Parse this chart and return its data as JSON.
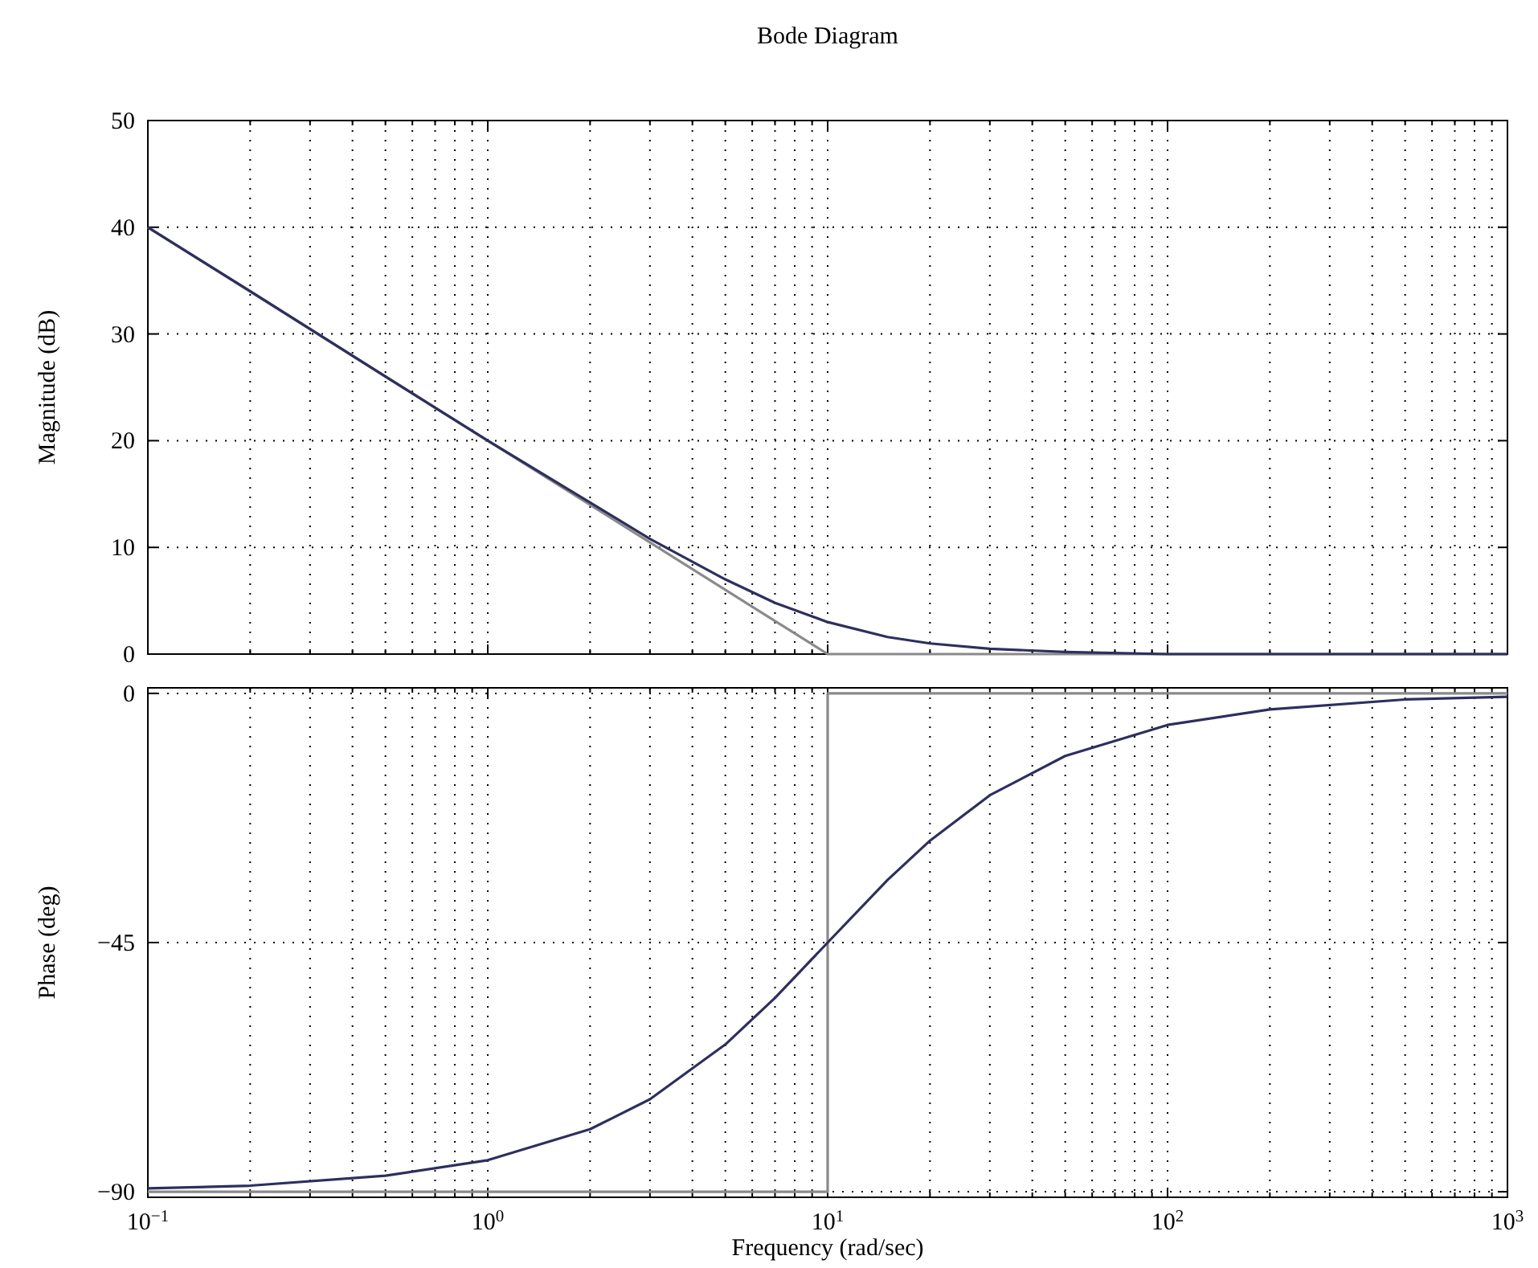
{
  "chart_data": [
    {
      "type": "line",
      "title": "Bode Diagram",
      "ylabel": "Magnitude (dB)",
      "log": "x",
      "grid": true,
      "tick_labels": "y",
      "line_style": "solid",
      "marker": "none",
      "xlim": [
        0.1,
        1000
      ],
      "xticks": [
        {
          "value": 0.1,
          "label": null
        },
        {
          "value": 0.2,
          "label": null
        },
        {
          "value": 0.3,
          "label": null
        },
        {
          "value": 0.4,
          "label": null
        },
        {
          "value": 0.5,
          "label": null
        },
        {
          "value": 0.6,
          "label": null
        },
        {
          "value": 0.7,
          "label": null
        },
        {
          "value": 0.8,
          "label": null
        },
        {
          "value": 0.9,
          "label": null
        },
        {
          "value": 1,
          "label": null
        },
        {
          "value": 2,
          "label": null
        },
        {
          "value": 3,
          "label": null
        },
        {
          "value": 4,
          "label": null
        },
        {
          "value": 5,
          "label": null
        },
        {
          "value": 6,
          "label": null
        },
        {
          "value": 7,
          "label": null
        },
        {
          "value": 8,
          "label": null
        },
        {
          "value": 9,
          "label": null
        },
        {
          "value": 10,
          "label": null
        },
        {
          "value": 20,
          "label": null
        },
        {
          "value": 30,
          "label": null
        },
        {
          "value": 40,
          "label": null
        },
        {
          "value": 50,
          "label": null
        },
        {
          "value": 60,
          "label": null
        },
        {
          "value": 70,
          "label": null
        },
        {
          "value": 80,
          "label": null
        },
        {
          "value": 90,
          "label": null
        },
        {
          "value": 100,
          "label": null
        },
        {
          "value": 200,
          "label": null
        },
        {
          "value": 300,
          "label": null
        },
        {
          "value": 400,
          "label": null
        },
        {
          "value": 500,
          "label": null
        },
        {
          "value": 600,
          "label": null
        },
        {
          "value": 700,
          "label": null
        },
        {
          "value": 800,
          "label": null
        },
        {
          "value": 900,
          "label": null
        },
        {
          "value": 1000,
          "label": null
        }
      ],
      "ylim": [
        0,
        50
      ],
      "yticks": [
        0,
        10,
        20,
        30,
        40,
        50
      ],
      "series": [
        {
          "color": "#8a8a8a",
          "x": [
            0.1,
            10,
            1000
          ],
          "values": [
            40,
            0,
            0
          ]
        },
        {
          "color": "#2e2f5e",
          "x": [
            0.1,
            0.2,
            0.5,
            1,
            2,
            3,
            5,
            7,
            10,
            15,
            20,
            30,
            50,
            100,
            200,
            500,
            1000
          ],
          "values": [
            40.0,
            34.0,
            26.0,
            20.0,
            14.2,
            10.8,
            7.0,
            4.8,
            3.0,
            1.6,
            1.0,
            0.5,
            0.2,
            0,
            0,
            0,
            0
          ]
        }
      ]
    },
    {
      "type": "line",
      "xlabel": "Frequency (rad/sec)",
      "ylabel": "Phase (deg)",
      "log": "x",
      "grid": true,
      "line_style": "solid",
      "marker": "none",
      "xlim": [
        0.1,
        1000
      ],
      "xticks": [
        {
          "value": 0.1,
          "label": "10$^{−1}$"
        },
        {
          "value": 0.2,
          "label": null
        },
        {
          "value": 0.3,
          "label": null
        },
        {
          "value": 0.4,
          "label": null
        },
        {
          "value": 0.5,
          "label": null
        },
        {
          "value": 0.6,
          "label": null
        },
        {
          "value": 0.7,
          "label": null
        },
        {
          "value": 0.8,
          "label": null
        },
        {
          "value": 0.9,
          "label": null
        },
        {
          "value": 1,
          "label": "10$^{0}$"
        },
        {
          "value": 2,
          "label": null
        },
        {
          "value": 3,
          "label": null
        },
        {
          "value": 4,
          "label": null
        },
        {
          "value": 5,
          "label": null
        },
        {
          "value": 6,
          "label": null
        },
        {
          "value": 7,
          "label": null
        },
        {
          "value": 8,
          "label": null
        },
        {
          "value": 9,
          "label": null
        },
        {
          "value": 10,
          "label": "10$^{1}$"
        },
        {
          "value": 20,
          "label": null
        },
        {
          "value": 30,
          "label": null
        },
        {
          "value": 40,
          "label": null
        },
        {
          "value": 50,
          "label": null
        },
        {
          "value": 60,
          "label": null
        },
        {
          "value": 70,
          "label": null
        },
        {
          "value": 80,
          "label": null
        },
        {
          "value": 90,
          "label": null
        },
        {
          "value": 100,
          "label": "10$^{2}$"
        },
        {
          "value": 200,
          "label": null
        },
        {
          "value": 300,
          "label": null
        },
        {
          "value": 400,
          "label": null
        },
        {
          "value": 500,
          "label": null
        },
        {
          "value": 600,
          "label": null
        },
        {
          "value": 700,
          "label": null
        },
        {
          "value": 800,
          "label": null
        },
        {
          "value": 900,
          "label": null
        },
        {
          "value": 1000,
          "label": "10$^{3}$"
        }
      ],
      "ylim": [
        -91,
        1
      ],
      "yticks": [
        {
          "value": -90,
          "label": "−90"
        },
        {
          "value": -45,
          "label": "−45"
        },
        0
      ],
      "series": [
        {
          "color": "#8a8a8a",
          "x": [
            0.1,
            10,
            10,
            1000
          ],
          "values": [
            -90,
            -90,
            0,
            0
          ]
        },
        {
          "color": "#2e2f5e",
          "x": [
            0.1,
            0.2,
            0.5,
            1,
            2,
            3,
            5,
            7,
            10,
            15,
            20,
            30,
            50,
            100,
            200,
            500,
            1000
          ],
          "values": [
            -89.4,
            -88.9,
            -87.1,
            -84.3,
            -78.7,
            -73.3,
            -63.4,
            -55.0,
            -45,
            -33.7,
            -26.6,
            -18.4,
            -11.3,
            -5.7,
            -2.9,
            -1.1,
            -0.6
          ]
        }
      ]
    }
  ]
}
